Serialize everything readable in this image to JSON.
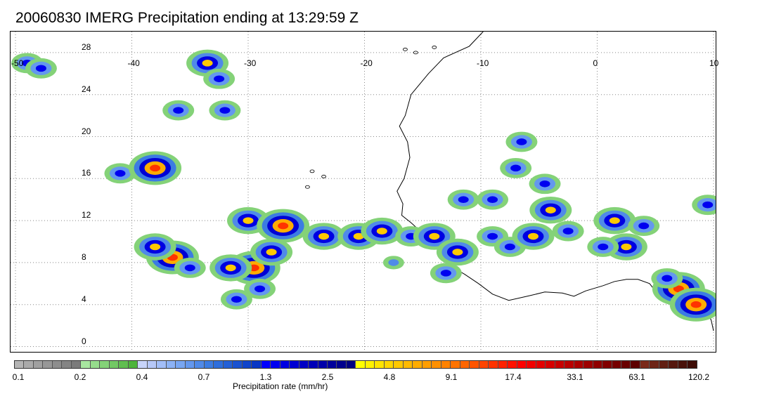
{
  "title": "20060830 IMERG Precipitation ending at 13:29:59 Z",
  "map": {
    "lon_range": [
      -50,
      10
    ],
    "lat_range": [
      -0.5,
      30
    ],
    "lon_ticks": [
      "-50",
      "-40",
      "-30",
      "-20",
      "-10",
      "0",
      "10"
    ],
    "lat_ticks": [
      "28",
      "24",
      "20",
      "16",
      "12",
      "8",
      "4",
      "0"
    ],
    "grid": "dotted",
    "coastline_color": "#000000",
    "rain_cells": [
      {
        "lon": -49,
        "lat": 27,
        "level": 2
      },
      {
        "lon": -47.8,
        "lat": 26.5,
        "level": 2
      },
      {
        "lon": -41,
        "lat": 16.5,
        "level": 2
      },
      {
        "lon": -38,
        "lat": 17,
        "level": 4
      },
      {
        "lon": -33.5,
        "lat": 27,
        "level": 3
      },
      {
        "lon": -32.5,
        "lat": 25.5,
        "level": 2
      },
      {
        "lon": -36,
        "lat": 22.5,
        "level": 2
      },
      {
        "lon": -32,
        "lat": 22.5,
        "level": 2
      },
      {
        "lon": -36.5,
        "lat": 8.5,
        "level": 4
      },
      {
        "lon": -38,
        "lat": 9.5,
        "level": 3
      },
      {
        "lon": -35,
        "lat": 7.5,
        "level": 2
      },
      {
        "lon": -29.5,
        "lat": 7.5,
        "level": 4
      },
      {
        "lon": -31.5,
        "lat": 7.5,
        "level": 3
      },
      {
        "lon": -28,
        "lat": 9,
        "level": 3
      },
      {
        "lon": -30,
        "lat": 12,
        "level": 3
      },
      {
        "lon": -27,
        "lat": 11.5,
        "level": 4
      },
      {
        "lon": -29,
        "lat": 5.5,
        "level": 2
      },
      {
        "lon": -31,
        "lat": 4.5,
        "level": 2
      },
      {
        "lon": -23.5,
        "lat": 10.5,
        "level": 3
      },
      {
        "lon": -20.5,
        "lat": 10.5,
        "level": 3
      },
      {
        "lon": -18.5,
        "lat": 11,
        "level": 3
      },
      {
        "lon": -16,
        "lat": 10.5,
        "level": 2
      },
      {
        "lon": -14,
        "lat": 10.5,
        "level": 3
      },
      {
        "lon": -12,
        "lat": 9,
        "level": 3
      },
      {
        "lon": -13,
        "lat": 7,
        "level": 2
      },
      {
        "lon": -11.5,
        "lat": 14,
        "level": 2
      },
      {
        "lon": -9,
        "lat": 14,
        "level": 2
      },
      {
        "lon": -9,
        "lat": 10.5,
        "level": 2
      },
      {
        "lon": -7.5,
        "lat": 9.5,
        "level": 2
      },
      {
        "lon": -5.5,
        "lat": 10.5,
        "level": 3
      },
      {
        "lon": -4,
        "lat": 13,
        "level": 3
      },
      {
        "lon": -2.5,
        "lat": 11,
        "level": 2
      },
      {
        "lon": 1.5,
        "lat": 12,
        "level": 3
      },
      {
        "lon": 2.5,
        "lat": 9.5,
        "level": 3
      },
      {
        "lon": 0.5,
        "lat": 9.5,
        "level": 2
      },
      {
        "lon": 4,
        "lat": 11.5,
        "level": 2
      },
      {
        "lon": 7,
        "lat": 5.5,
        "level": 4
      },
      {
        "lon": 8.5,
        "lat": 4,
        "level": 4
      },
      {
        "lon": 6,
        "lat": 6.5,
        "level": 2
      },
      {
        "lon": -6.5,
        "lat": 19.5,
        "level": 2
      },
      {
        "lon": -7,
        "lat": 17,
        "level": 2
      },
      {
        "lon": -4.5,
        "lat": 15.5,
        "level": 2
      },
      {
        "lon": 9.5,
        "lat": 13.5,
        "level": 2
      },
      {
        "lon": -17.5,
        "lat": 8,
        "level": 1
      }
    ]
  },
  "colorbar": {
    "title": "Precipitation rate (mm/hr)",
    "tick_labels": [
      "0.1",
      "0.2",
      "0.4",
      "0.7",
      "1.3",
      "2.5",
      "4.8",
      "9.1",
      "17.4",
      "33.1",
      "63.1",
      "120.2"
    ],
    "colors": [
      "#b4b4b4",
      "#aaaaaa",
      "#a0a0a0",
      "#979797",
      "#8d8d8d",
      "#848484",
      "#7b7b7b",
      "#a8e6a0",
      "#96dc8c",
      "#84d278",
      "#72c864",
      "#60be50",
      "#4eb43c",
      "#c8d4fa",
      "#b6c8f8",
      "#a2bef8",
      "#8cb2f5",
      "#78a6f2",
      "#6498ee",
      "#508ae8",
      "#3c7ce2",
      "#2e6edc",
      "#2460d6",
      "#1a52d0",
      "#1044ca",
      "#0836c4",
      "#0000ff",
      "#0000f0",
      "#0000e2",
      "#0000d4",
      "#0000c6",
      "#0000b8",
      "#0000aa",
      "#00009c",
      "#00008e",
      "#000080",
      "#ffff00",
      "#fff200",
      "#ffe400",
      "#ffd600",
      "#ffc800",
      "#ffba00",
      "#ffac00",
      "#ff9e00",
      "#ff9000",
      "#ff8200",
      "#ff7400",
      "#ff6600",
      "#ff5500",
      "#ff4400",
      "#ff3300",
      "#ff2200",
      "#ff1100",
      "#ff0000",
      "#f20000",
      "#e40000",
      "#d60000",
      "#c80000",
      "#ba0000",
      "#ac0000",
      "#9e0000",
      "#900000",
      "#820000",
      "#760000",
      "#6a0000",
      "#5e0000",
      "#7a2a1a",
      "#6e2416",
      "#621e12",
      "#56180e",
      "#4a120a",
      "#3e0c06"
    ]
  }
}
